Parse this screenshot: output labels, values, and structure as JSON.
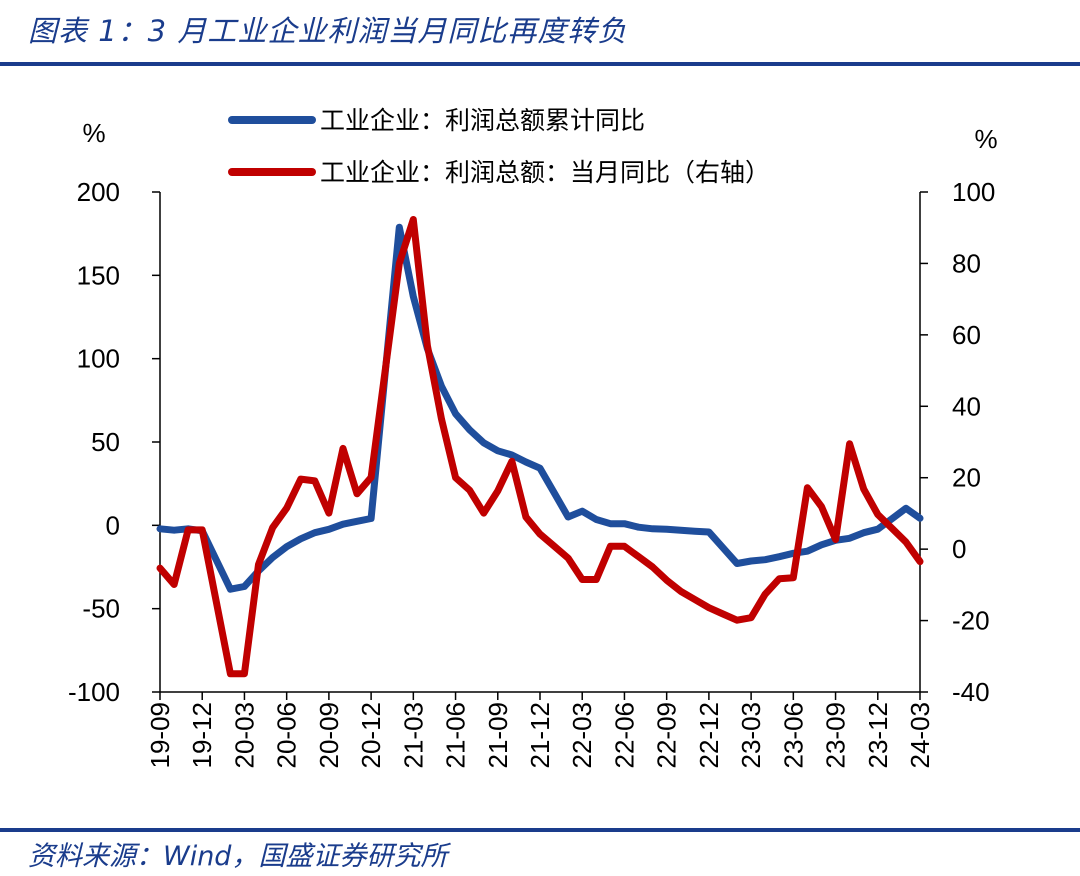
{
  "header": {
    "title": "图表 1：3 月工业企业利润当月同比再度转负"
  },
  "footer": {
    "source": "资料来源：Wind，国盛证券研究所"
  },
  "chart_data": {
    "type": "line",
    "title": "",
    "xlabel": "",
    "ylabel_left": "%",
    "ylabel_right": "%",
    "ylim_left": [
      -100,
      200
    ],
    "ylim_right": [
      -40,
      100
    ],
    "yticks_left": [
      "200",
      "150",
      "100",
      "50",
      "0",
      "-50",
      "-100"
    ],
    "yticks_right": [
      "100",
      "80",
      "60",
      "40",
      "20",
      "0",
      "-20",
      "-40"
    ],
    "xticks": [
      "19-09",
      "19-12",
      "20-03",
      "20-06",
      "20-09",
      "20-12",
      "21-03",
      "21-06",
      "21-09",
      "21-12",
      "22-03",
      "22-06",
      "22-09",
      "22-12",
      "23-03",
      "23-06",
      "23-09",
      "23-12",
      "24-03"
    ],
    "x": [
      "19-09",
      "19-10",
      "19-11",
      "19-12",
      "20-01",
      "20-02",
      "20-03",
      "20-04",
      "20-05",
      "20-06",
      "20-07",
      "20-08",
      "20-09",
      "20-10",
      "20-11",
      "20-12",
      "21-01",
      "21-02",
      "21-03",
      "21-04",
      "21-05",
      "21-06",
      "21-07",
      "21-08",
      "21-09",
      "21-10",
      "21-11",
      "21-12",
      "22-01",
      "22-02",
      "22-03",
      "22-04",
      "22-05",
      "22-06",
      "22-07",
      "22-08",
      "22-09",
      "22-10",
      "22-11",
      "22-12",
      "23-01",
      "23-02",
      "23-03",
      "23-04",
      "23-05",
      "23-06",
      "23-07",
      "23-08",
      "23-09",
      "23-10",
      "23-11",
      "23-12",
      "24-01",
      "24-02",
      "24-03"
    ],
    "legend": {
      "position": "top"
    },
    "series": [
      {
        "name": "工业企业：利润总额累计同比",
        "axis": "left",
        "color": "#1f4e9c",
        "values": [
          -2.1,
          -2.9,
          -2.1,
          -3.3,
          null,
          -38.3,
          -36.7,
          -27.4,
          -19.3,
          -12.8,
          -8.1,
          -4.4,
          -2.4,
          0.7,
          2.4,
          4.1,
          null,
          178.9,
          137.3,
          106.0,
          83.4,
          66.9,
          57.3,
          49.5,
          44.7,
          42.2,
          38.0,
          34.3,
          null,
          5.0,
          8.5,
          3.5,
          1.0,
          1.0,
          -1.1,
          -2.1,
          -2.3,
          -3.0,
          -3.6,
          -4.0,
          null,
          -22.9,
          -21.4,
          -20.6,
          -18.8,
          -16.8,
          -15.5,
          -11.7,
          -9.0,
          -7.8,
          -4.4,
          -2.3,
          null,
          10.2,
          4.3
        ],
        "axis_values_note": ""
      },
      {
        "name": "工业企业：利润总额：当月同比（右轴）",
        "axis": "right",
        "color": "#c00000",
        "values": [
          -5.3,
          -9.9,
          5.4,
          5.4,
          null,
          -34.9,
          -34.9,
          -4.3,
          6.0,
          11.5,
          19.6,
          19.1,
          10.1,
          28.2,
          15.5,
          20.1,
          null,
          80.0,
          92.3,
          57.0,
          36.4,
          20.0,
          16.5,
          10.1,
          16.3,
          24.6,
          9.0,
          4.2,
          null,
          -2.5,
          -8.5,
          -8.5,
          0.8,
          0.8,
          -2.1,
          -5.0,
          -8.7,
          -11.8,
          -14.1,
          -16.4,
          null,
          -19.9,
          -19.2,
          -12.6,
          -8.3,
          -8.0,
          17.2,
          11.9,
          2.7,
          29.5,
          16.8,
          9.7,
          null,
          2.0,
          -3.5
        ]
      }
    ]
  }
}
